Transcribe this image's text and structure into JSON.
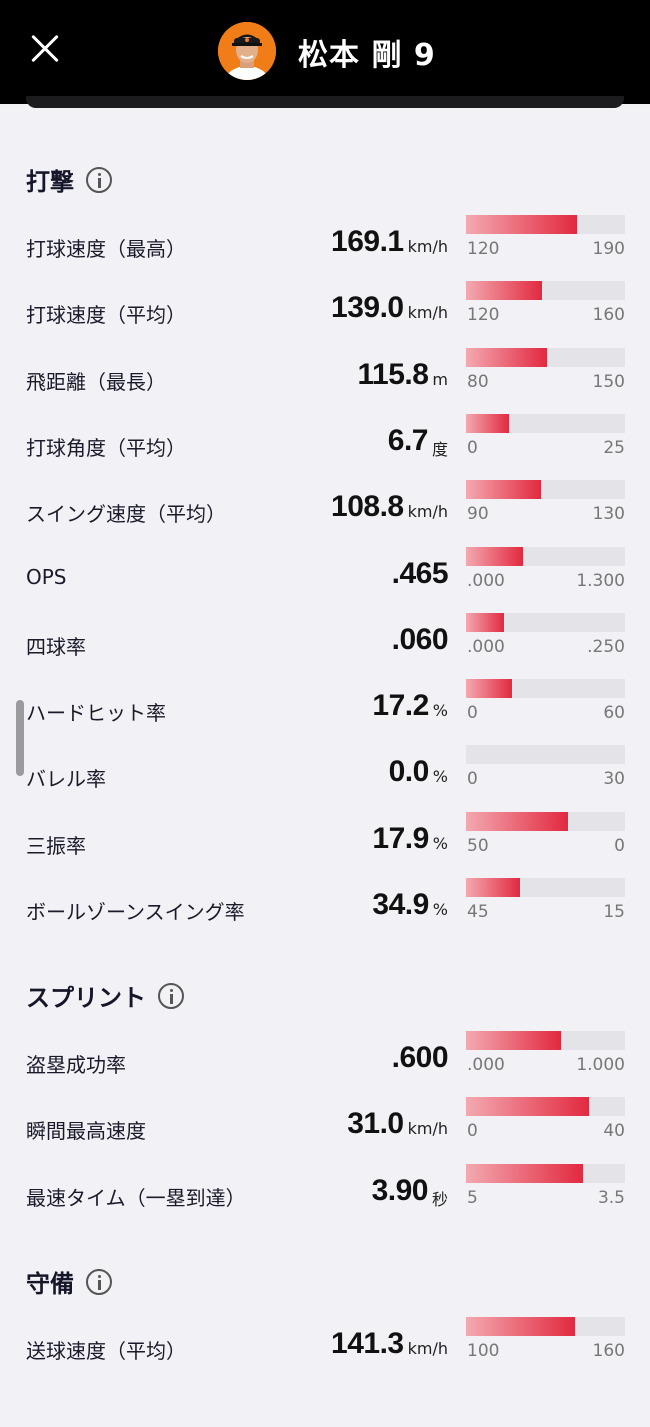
{
  "header": {
    "player_name": "松本 剛 9",
    "avatar_icon": "player-avatar-photo"
  },
  "sections": [
    {
      "title": "打撃",
      "rows": [
        {
          "label": "打球速度（最高）",
          "value": "169.1",
          "unit": "km/h",
          "min": "120",
          "max": "190",
          "fill": 0.7
        },
        {
          "label": "打球速度（平均）",
          "value": "139.0",
          "unit": "km/h",
          "min": "120",
          "max": "160",
          "fill": 0.475
        },
        {
          "label": "飛距離（最長）",
          "value": "115.8",
          "unit": "m",
          "min": "80",
          "max": "150",
          "fill": 0.51
        },
        {
          "label": "打球角度（平均）",
          "value": "6.7",
          "unit": "度",
          "min": "0",
          "max": "25",
          "fill": 0.268
        },
        {
          "label": "スイング速度（平均）",
          "value": "108.8",
          "unit": "km/h",
          "min": "90",
          "max": "130",
          "fill": 0.47
        },
        {
          "label": "OPS",
          "value": ".465",
          "unit": "",
          "min": ".000",
          "max": "1.300",
          "fill": 0.358
        },
        {
          "label": "四球率",
          "value": ".060",
          "unit": "",
          "min": ".000",
          "max": ".250",
          "fill": 0.24
        },
        {
          "label": "ハードヒット率",
          "value": "17.2",
          "unit": "%",
          "min": "0",
          "max": "60",
          "fill": 0.287
        },
        {
          "label": "バレル率",
          "value": "0.0",
          "unit": "%",
          "min": "0",
          "max": "30",
          "fill": 0.0
        },
        {
          "label": "三振率",
          "value": "17.9",
          "unit": "%",
          "min": "50",
          "max": "0",
          "fill": 0.642
        },
        {
          "label": "ボールゾーンスイング率",
          "value": "34.9",
          "unit": "%",
          "min": "45",
          "max": "15",
          "fill": 0.337
        }
      ]
    },
    {
      "title": "スプリント",
      "rows": [
        {
          "label": "盗塁成功率",
          "value": ".600",
          "unit": "",
          "min": ".000",
          "max": "1.000",
          "fill": 0.6
        },
        {
          "label": "瞬間最高速度",
          "value": "31.0",
          "unit": "km/h",
          "min": "0",
          "max": "40",
          "fill": 0.775
        },
        {
          "label": "最速タイム（一塁到達）",
          "value": "3.90",
          "unit": "秒",
          "min": "5",
          "max": "3.5",
          "fill": 0.733
        }
      ]
    },
    {
      "title": "守備",
      "rows": [
        {
          "label": "送球速度（平均）",
          "value": "141.3",
          "unit": "km/h",
          "min": "100",
          "max": "160",
          "fill": 0.688
        }
      ]
    }
  ]
}
